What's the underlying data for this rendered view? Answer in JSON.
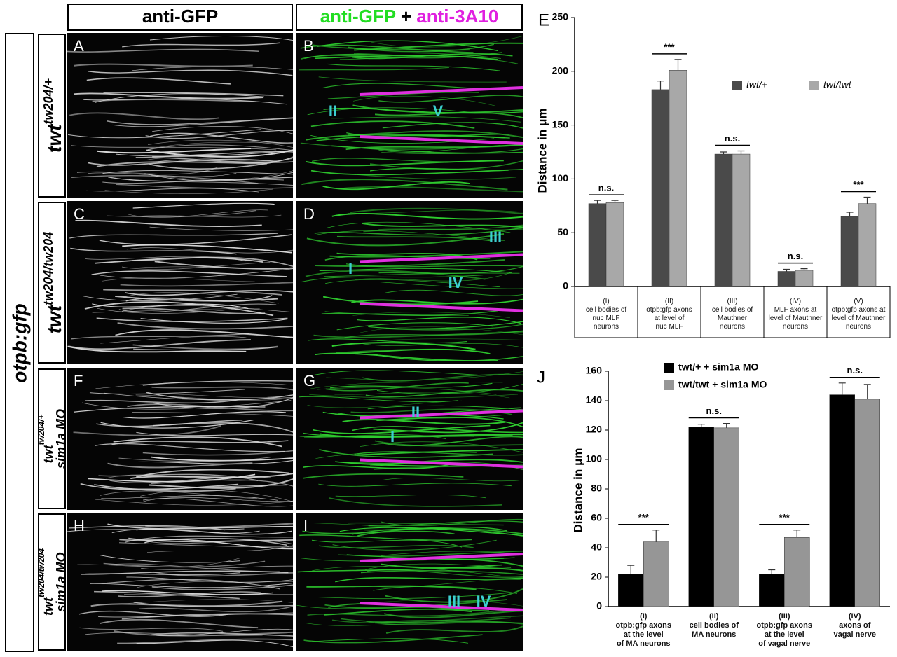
{
  "side_label": "otpb:gfp",
  "column_headers": [
    [
      "anti-GFP"
    ],
    [
      "anti-GFP",
      "+",
      "anti-3A10"
    ]
  ],
  "row_labels": [
    {
      "name": "twt",
      "genotype": "tw204/+"
    },
    {
      "name": "twt",
      "genotype": "tw204/tw204"
    },
    {
      "name": "twt",
      "genotype": "tw204/+",
      "treatment": "sim1a MO"
    },
    {
      "name": "twt",
      "genotype": "tw204/tw204",
      "treatment": "sim1a MO"
    }
  ],
  "panels": [
    {
      "letter": "A"
    },
    {
      "letter": "B",
      "annotations": [
        "II",
        "V"
      ]
    },
    {
      "letter": "C"
    },
    {
      "letter": "D",
      "annotations": [
        "I",
        "IV",
        "III"
      ]
    },
    {
      "letter": "F"
    },
    {
      "letter": "G",
      "annotations": [
        "II",
        "I"
      ]
    },
    {
      "letter": "H"
    },
    {
      "letter": "I",
      "annotations": [
        "III",
        "IV"
      ]
    }
  ],
  "chart_data": [
    {
      "type": "bar",
      "panel_label": "E",
      "y_label": "Distance in μm",
      "categories": [
        "(I)\ncell bodies of\nnuc MLF\nneurons",
        "(II)\notpb:gfp axons\nat level of\nnuc MLF",
        "(III)\ncell bodies of\nMauthner\nneurons",
        "(IV)\nMLF axons at\nlevel of Mauthner\nneurons",
        "(V)\notpb:gfp axons at\nlevel of Mauthner\nneurons"
      ],
      "series": [
        {
          "name": "twt/+",
          "color": "#4a4a4a",
          "values": [
            77,
            183,
            123,
            14,
            65
          ],
          "errors": [
            3,
            8,
            2,
            2,
            4
          ]
        },
        {
          "name": "twt/twt",
          "color": "#a8a8a8",
          "values": [
            78,
            201,
            123,
            15,
            77
          ],
          "errors": [
            2,
            10,
            3,
            1.5,
            6
          ]
        }
      ],
      "significance": [
        "n.s.",
        "***",
        "n.s.",
        "n.s.",
        "***"
      ],
      "ylim": [
        0,
        250
      ],
      "yticks": [
        0,
        50,
        100,
        150,
        200,
        250
      ]
    },
    {
      "type": "bar",
      "panel_label": "J",
      "y_label": "Distance in μm",
      "categories": [
        "(I)\notpb:gfp axons\nat the level\nof MA neurons",
        "(II)\ncell bodies of\nMA neurons",
        "(III)\notpb:gfp axons\nat the level\nof vagal nerve",
        "(IV)\naxons of\nvagal nerve"
      ],
      "series": [
        {
          "name": "twt/+ + sim1a MO",
          "color": "#000000",
          "values": [
            22,
            122,
            22,
            144
          ],
          "errors": [
            6,
            2,
            3,
            8
          ]
        },
        {
          "name": "twt/twt + sim1a MO",
          "color": "#969696",
          "values": [
            44,
            121.5,
            47,
            141
          ],
          "errors": [
            8,
            3,
            5,
            10
          ]
        }
      ],
      "significance": [
        "***",
        "n.s.",
        "***",
        "n.s."
      ],
      "ylim": [
        0,
        160
      ],
      "yticks": [
        0,
        20,
        40,
        60,
        80,
        100,
        120,
        140,
        160
      ]
    }
  ]
}
